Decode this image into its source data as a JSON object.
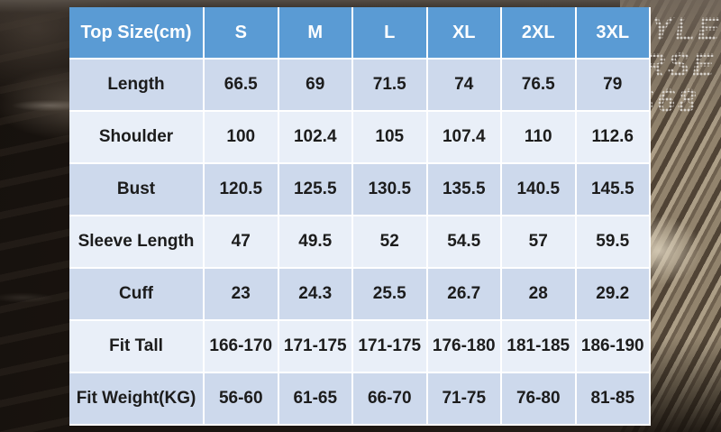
{
  "chart_data": {
    "type": "table",
    "title": "Top Size(cm)",
    "columns": [
      "Top Size(cm)",
      "S",
      "M",
      "L",
      "XL",
      "2XL",
      "3XL"
    ],
    "rows": [
      {
        "label": "Length",
        "values": [
          "66.5",
          "69",
          "71.5",
          "74",
          "76.5",
          "79"
        ]
      },
      {
        "label": "Shoulder",
        "values": [
          "100",
          "102.4",
          "105",
          "107.4",
          "110",
          "112.6"
        ]
      },
      {
        "label": "Bust",
        "values": [
          "120.5",
          "125.5",
          "130.5",
          "135.5",
          "140.5",
          "145.5"
        ]
      },
      {
        "label": "Sleeve Length",
        "values": [
          "47",
          "49.5",
          "52",
          "54.5",
          "57",
          "59.5"
        ]
      },
      {
        "label": "Cuff",
        "values": [
          "23",
          "24.3",
          "25.5",
          "26.7",
          "28",
          "29.2"
        ]
      },
      {
        "label": "Fit Tall",
        "values": [
          "166-170",
          "171-175",
          "171-175",
          "176-180",
          "181-185",
          "186-190"
        ]
      },
      {
        "label": "Fit Weight(KG)",
        "values": [
          "56-60",
          "61-65",
          "66-70",
          "71-75",
          "76-80",
          "81-85"
        ]
      }
    ]
  },
  "watermark": {
    "fragments": [
      "YLE",
      "RSE",
      "S68"
    ]
  },
  "colors": {
    "header_bg": "#5a9bd4",
    "header_text": "#ffffff",
    "row_odd": "#cdd9ec",
    "row_even": "#e9eff8",
    "cell_text": "#1c1c1c",
    "grid": "#ffffff"
  }
}
